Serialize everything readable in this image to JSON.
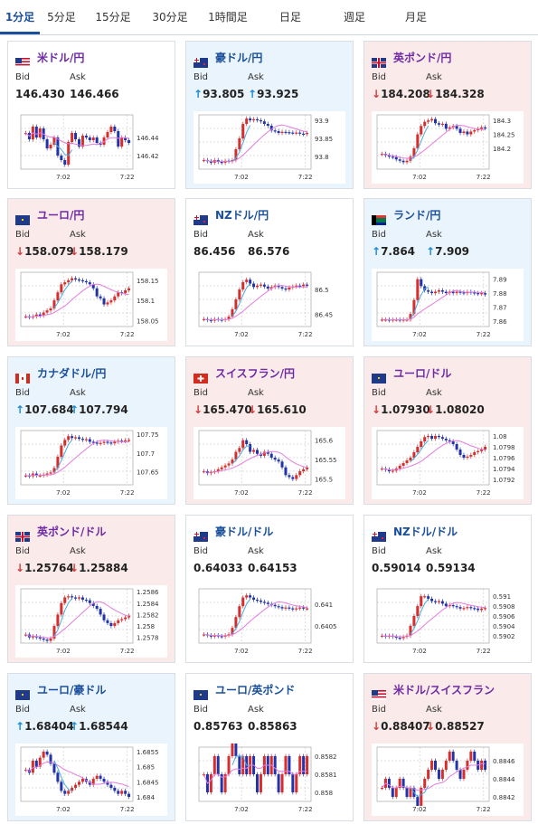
{
  "tabs": [
    "1分足",
    "5分足",
    "15分足",
    "30分足",
    "1時間足",
    "日足",
    "週足",
    "月足"
  ],
  "active_tab": 0,
  "labels": {
    "bid": "Bid",
    "ask": "Ask"
  },
  "x_ticks": [
    "7:02",
    "7:22"
  ],
  "colors": {
    "up": "#1a8ad4",
    "down": "#d63a3a",
    "candle_up": "#d62d2d",
    "candle_down": "#2233aa",
    "ma_pink": "#e37ce0",
    "ma_blue": "#48aee0"
  },
  "cards": [
    {
      "pair": "米ドル/円",
      "flag": "us",
      "bg": "white",
      "bid": "146.430",
      "ask": "146.466",
      "dir": "",
      "ticks": [
        "146.44",
        "146.42"
      ],
      "ylim": [
        146.405,
        146.465
      ],
      "chart_data": {
        "type": "candlestick",
        "closes": [
          146.445,
          146.438,
          146.452,
          146.44,
          146.45,
          146.438,
          146.428,
          146.432,
          146.44,
          146.42,
          146.415,
          146.41,
          146.435,
          146.445,
          146.438,
          146.43,
          146.442,
          146.44,
          146.437,
          146.44,
          146.434,
          146.432,
          146.44,
          146.446,
          146.452,
          146.447,
          146.43,
          146.44,
          146.437,
          146.434
        ]
      }
    },
    {
      "pair": "豪ドル/円",
      "flag": "au",
      "bg": "blue",
      "bid": "93.805",
      "ask": "93.925",
      "dir": "up",
      "ticks": [
        "93.9",
        "93.85",
        "93.8"
      ],
      "ylim": [
        93.765,
        93.915
      ],
      "chart_data": {
        "type": "candlestick",
        "closes": [
          93.79,
          93.787,
          93.783,
          93.79,
          93.785,
          93.783,
          93.788,
          93.787,
          93.79,
          93.82,
          93.85,
          93.89,
          93.905,
          93.9,
          93.903,
          93.9,
          93.897,
          93.89,
          93.885,
          93.872,
          93.87,
          93.865,
          93.868,
          93.867,
          93.866,
          93.865,
          93.866,
          93.863,
          93.862,
          93.865
        ]
      }
    },
    {
      "pair": "英ポンド/円",
      "flag": "uk",
      "bg": "red",
      "bid": "184.208",
      "ask": "184.328",
      "dir": "down",
      "ticks": [
        "184.3",
        "184.25",
        "184.2"
      ],
      "ylim": [
        184.125,
        184.32
      ],
      "chart_data": {
        "type": "candlestick",
        "closes": [
          184.18,
          184.175,
          184.17,
          184.168,
          184.16,
          184.155,
          184.15,
          184.155,
          184.17,
          184.2,
          184.25,
          184.28,
          184.295,
          184.3,
          184.305,
          184.29,
          184.285,
          184.288,
          184.27,
          184.275,
          184.28,
          184.27,
          184.255,
          184.26,
          184.25,
          184.26,
          184.265,
          184.27,
          184.275,
          184.272
        ]
      }
    },
    {
      "pair": "ユーロ/円",
      "flag": "eu",
      "bg": "red",
      "bid": "158.079",
      "ask": "158.179",
      "dir": "down",
      "ticks": [
        "158.15",
        "158.1",
        "158.05"
      ],
      "ylim": [
        158.035,
        158.17
      ],
      "chart_data": {
        "type": "candlestick",
        "closes": [
          158.06,
          158.058,
          158.06,
          158.065,
          158.062,
          158.07,
          158.075,
          158.08,
          158.1,
          158.12,
          158.14,
          158.145,
          158.15,
          158.155,
          158.152,
          158.15,
          158.148,
          158.145,
          158.14,
          158.13,
          158.11,
          158.105,
          158.09,
          158.095,
          158.1,
          158.11,
          158.12,
          158.118,
          158.125,
          158.13
        ]
      }
    },
    {
      "pair": "NZドル/円",
      "flag": "nz",
      "bg": "white",
      "bid": "86.456",
      "ask": "86.576",
      "dir": "",
      "ticks": [
        "86.5",
        "86.45"
      ],
      "ylim": [
        86.425,
        86.535
      ],
      "chart_data": {
        "type": "candlestick",
        "closes": [
          86.44,
          86.438,
          86.437,
          86.44,
          86.439,
          86.438,
          86.44,
          86.445,
          86.46,
          86.48,
          86.5,
          86.515,
          86.52,
          86.512,
          86.505,
          86.508,
          86.51,
          86.506,
          86.502,
          86.505,
          86.508,
          86.505,
          86.502,
          86.5,
          86.504,
          86.506,
          86.508,
          86.507,
          86.51,
          86.508
        ]
      }
    },
    {
      "pair": "ランド/円",
      "flag": "za",
      "bg": "blue",
      "bid": "7.864",
      "ask": "7.909",
      "dir": "up",
      "ticks": [
        "7.89",
        "7.88",
        "7.87",
        "7.86"
      ],
      "ylim": [
        7.856,
        7.895
      ],
      "chart_data": {
        "type": "candlestick",
        "closes": [
          7.861,
          7.861,
          7.8605,
          7.861,
          7.861,
          7.8605,
          7.861,
          7.861,
          7.865,
          7.875,
          7.89,
          7.885,
          7.882,
          7.881,
          7.88,
          7.881,
          7.882,
          7.881,
          7.88,
          7.881,
          7.88,
          7.881,
          7.8805,
          7.88,
          7.881,
          7.8805,
          7.88,
          7.8795,
          7.88,
          7.879
        ]
      }
    },
    {
      "pair": "カナダドル/円",
      "flag": "ca",
      "bg": "blue",
      "bid": "107.684",
      "ask": "107.794",
      "dir": "up",
      "ticks": [
        "107.75",
        "107.7",
        "107.65"
      ],
      "ylim": [
        107.615,
        107.76
      ],
      "chart_data": {
        "type": "candlestick",
        "closes": [
          107.64,
          107.638,
          107.645,
          107.64,
          107.64,
          107.642,
          107.645,
          107.648,
          107.66,
          107.69,
          107.72,
          107.735,
          107.745,
          107.74,
          107.742,
          107.738,
          107.735,
          107.737,
          107.73,
          107.728,
          107.725,
          107.727,
          107.73,
          107.728,
          107.726,
          107.73,
          107.733,
          107.732,
          107.734,
          107.735
        ]
      }
    },
    {
      "pair": "スイスフラン/円",
      "flag": "ch",
      "bg": "red",
      "bid": "165.470",
      "ask": "165.610",
      "dir": "down",
      "ticks": [
        "165.6",
        "165.55",
        "165.5"
      ],
      "ylim": [
        165.485,
        165.625
      ],
      "chart_data": {
        "type": "candlestick",
        "closes": [
          165.52,
          165.515,
          165.518,
          165.52,
          165.525,
          165.53,
          165.535,
          165.54,
          165.55,
          165.57,
          165.58,
          165.6,
          165.59,
          165.57,
          165.575,
          165.565,
          165.56,
          165.57,
          165.565,
          165.555,
          165.55,
          165.545,
          165.53,
          165.51,
          165.505,
          165.5,
          165.51,
          165.52,
          165.525,
          165.53
        ]
      }
    },
    {
      "pair": "ユーロ/ドル",
      "flag": "eu",
      "bg": "red",
      "bid": "1.07930",
      "ask": "1.08020",
      "dir": "down",
      "ticks": [
        "1.08",
        "1.0798",
        "1.0796",
        "1.0794",
        "1.0792"
      ],
      "ylim": [
        1.0791,
        1.0801
      ],
      "chart_data": {
        "type": "candlestick",
        "closes": [
          1.0794,
          1.07938,
          1.07935,
          1.07936,
          1.0794,
          1.07945,
          1.0795,
          1.07955,
          1.0796,
          1.0797,
          1.0798,
          1.0799,
          1.07998,
          1.08,
          1.07995,
          1.08,
          1.07998,
          1.07995,
          1.07992,
          1.0799,
          1.07985,
          1.07975,
          1.07965,
          1.0796,
          1.07962,
          1.07965,
          1.0797,
          1.07972,
          1.07975,
          1.0798
        ]
      }
    },
    {
      "pair": "英ポンド/ドル",
      "flag": "uk",
      "bg": "red",
      "bid": "1.25764",
      "ask": "1.25884",
      "dir": "down",
      "ticks": [
        "1.2586",
        "1.2584",
        "1.2582",
        "1.258",
        "1.2578"
      ],
      "ylim": [
        1.2577,
        1.25865
      ],
      "chart_data": {
        "type": "candlestick",
        "closes": [
          1.25785,
          1.2578,
          1.25782,
          1.2578,
          1.25778,
          1.25776,
          1.25774,
          1.25778,
          1.258,
          1.2582,
          1.2584,
          1.2585,
          1.25852,
          1.2585,
          1.25848,
          1.2585,
          1.25846,
          1.25845,
          1.2584,
          1.25835,
          1.2583,
          1.2582,
          1.2581,
          1.25805,
          1.258,
          1.25805,
          1.2581,
          1.25812,
          1.25815,
          1.25818
        ]
      }
    },
    {
      "pair": "豪ドル/ドル",
      "flag": "au",
      "bg": "white",
      "bid": "0.64033",
      "ask": "0.64153",
      "dir": "",
      "ticks": [
        "0.641",
        "0.6405"
      ],
      "ylim": [
        0.6401,
        0.64135
      ],
      "chart_data": {
        "type": "candlestick",
        "closes": [
          0.6403,
          0.64028,
          0.64025,
          0.64028,
          0.64026,
          0.64025,
          0.64028,
          0.6403,
          0.64045,
          0.6407,
          0.64095,
          0.64115,
          0.6412,
          0.64115,
          0.6411,
          0.64108,
          0.64105,
          0.64103,
          0.641,
          0.64098,
          0.64095,
          0.64093,
          0.6409,
          0.64092,
          0.6409,
          0.64088,
          0.6409,
          0.64092,
          0.6409,
          0.6409
        ]
      }
    },
    {
      "pair": "NZドル/ドル",
      "flag": "nz",
      "bg": "white",
      "bid": "0.59014",
      "ask": "0.59134",
      "dir": "",
      "ticks": [
        "0.591",
        "0.5908",
        "0.5906",
        "0.5904",
        "0.5902"
      ],
      "ylim": [
        0.59005,
        0.59115
      ],
      "chart_data": {
        "type": "candlestick",
        "closes": [
          0.5902,
          0.59018,
          0.5902,
          0.59018,
          0.59016,
          0.59015,
          0.59018,
          0.5902,
          0.5904,
          0.5906,
          0.5908,
          0.591,
          0.591,
          0.59095,
          0.5909,
          0.59088,
          0.5909,
          0.59085,
          0.5908,
          0.59082,
          0.5908,
          0.59078,
          0.59075,
          0.59076,
          0.59078,
          0.59076,
          0.59075,
          0.59072,
          0.59075,
          0.59076
        ]
      }
    },
    {
      "pair": "ユーロ/豪ドル",
      "flag": "eu",
      "bg": "blue",
      "bid": "1.68404",
      "ask": "1.68544",
      "dir": "up",
      "ticks": [
        "1.6855",
        "1.685",
        "1.6845",
        "1.684"
      ],
      "ylim": [
        1.68385,
        1.68565
      ],
      "chart_data": {
        "type": "candlestick",
        "closes": [
          1.6849,
          1.6848,
          1.6852,
          1.685,
          1.6853,
          1.6855,
          1.6854,
          1.6851,
          1.6848,
          1.6845,
          1.6842,
          1.6841,
          1.6842,
          1.6843,
          1.6844,
          1.6845,
          1.6846,
          1.6845,
          1.6844,
          1.6846,
          1.6847,
          1.6846,
          1.6845,
          1.6844,
          1.6843,
          1.6842,
          1.6841,
          1.6842,
          1.6841,
          1.684
        ]
      }
    },
    {
      "pair": "ユーロ/英ポンド",
      "flag": "eu",
      "bg": "white",
      "bid": "0.85763",
      "ask": "0.85863",
      "dir": "",
      "ticks": [
        "0.8582",
        "0.8581",
        "0.858"
      ],
      "ylim": [
        0.85795,
        0.85825
      ],
      "chart_data": {
        "type": "candlestick",
        "closes": [
          0.8581,
          0.858,
          0.8581,
          0.8582,
          0.8581,
          0.858,
          0.8581,
          0.8582,
          0.8583,
          0.8582,
          0.8581,
          0.8582,
          0.8581,
          0.8582,
          0.8581,
          0.858,
          0.8581,
          0.8582,
          0.8581,
          0.8582,
          0.8581,
          0.858,
          0.8581,
          0.8582,
          0.8581,
          0.858,
          0.8581,
          0.8582,
          0.8581,
          0.8582
        ]
      }
    },
    {
      "pair": "米ドル/スイスフラン",
      "flag": "us",
      "bg": "red",
      "bid": "0.88407",
      "ask": "0.88527",
      "dir": "down",
      "ticks": [
        "0.8846",
        "0.8844",
        "0.8842"
      ],
      "ylim": [
        0.88415,
        0.88475
      ],
      "chart_data": {
        "type": "candlestick",
        "closes": [
          0.8843,
          0.8844,
          0.8843,
          0.8842,
          0.8843,
          0.8844,
          0.8843,
          0.8842,
          0.8843,
          0.8842,
          0.8841,
          0.8843,
          0.8844,
          0.8845,
          0.8846,
          0.8845,
          0.8844,
          0.8845,
          0.8846,
          0.8847,
          0.8846,
          0.8845,
          0.8844,
          0.8845,
          0.8846,
          0.8847,
          0.8846,
          0.8845,
          0.8846,
          0.8845
        ]
      }
    }
  ]
}
